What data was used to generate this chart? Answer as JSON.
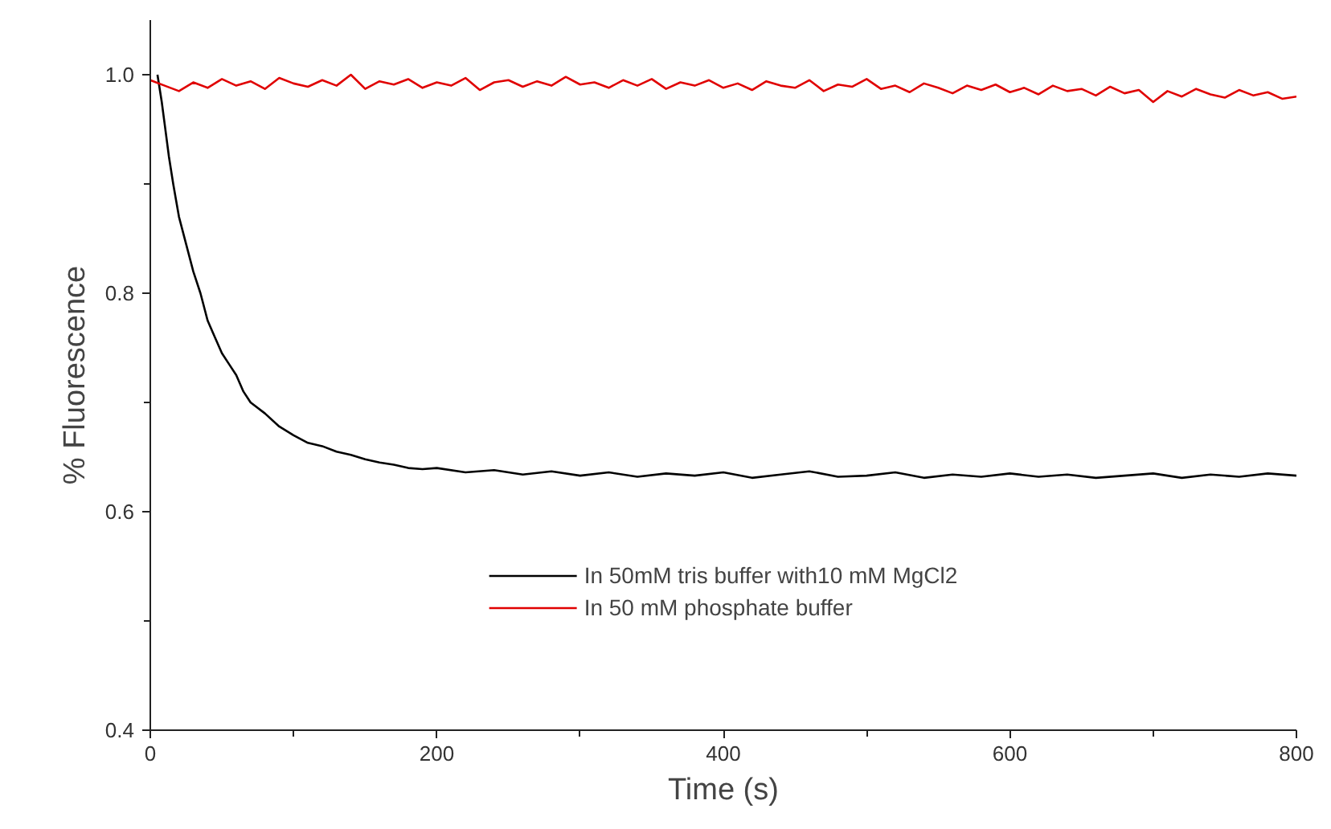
{
  "chart_data": {
    "type": "line",
    "xlabel": "Time (s)",
    "ylabel": "% Fluorescence",
    "xlim": [
      0,
      800
    ],
    "ylim": [
      0.4,
      1.05
    ],
    "xticks": [
      0,
      {
        "value": 100,
        "label": null
      },
      200,
      {
        "value": 300,
        "label": null
      },
      400,
      {
        "value": 500,
        "label": null
      },
      600,
      {
        "value": 700,
        "label": null
      },
      800
    ],
    "yticks": [
      {
        "value": 0.4,
        "label": "0.4"
      },
      {
        "value": 0.5,
        "label": null
      },
      {
        "value": 0.6,
        "label": "0.6"
      },
      {
        "value": 0.7,
        "label": null
      },
      {
        "value": 0.8,
        "label": "0.8"
      },
      {
        "value": 0.9,
        "label": null
      },
      {
        "value": 1.0,
        "label": "1.0"
      }
    ],
    "grid": false,
    "legend": "bottom",
    "line_style": "solid",
    "series": [
      {
        "name": "In 50mM tris buffer with10 mM MgCl2",
        "color": "#000000",
        "x": [
          5,
          8,
          10,
          13,
          16,
          20,
          25,
          30,
          35,
          40,
          45,
          50,
          55,
          60,
          65,
          70,
          80,
          90,
          100,
          110,
          120,
          130,
          140,
          150,
          160,
          170,
          180,
          190,
          200,
          220,
          240,
          260,
          280,
          300,
          320,
          340,
          360,
          380,
          400,
          420,
          440,
          460,
          480,
          500,
          520,
          540,
          560,
          580,
          600,
          620,
          640,
          660,
          680,
          700,
          720,
          740,
          760,
          780,
          800
        ],
        "values": [
          1.0,
          0.975,
          0.955,
          0.925,
          0.9,
          0.87,
          0.845,
          0.82,
          0.8,
          0.775,
          0.76,
          0.745,
          0.735,
          0.725,
          0.71,
          0.7,
          0.69,
          0.678,
          0.67,
          0.663,
          0.66,
          0.655,
          0.652,
          0.648,
          0.645,
          0.643,
          0.64,
          0.639,
          0.64,
          0.636,
          0.638,
          0.634,
          0.637,
          0.633,
          0.636,
          0.632,
          0.635,
          0.633,
          0.636,
          0.631,
          0.634,
          0.637,
          0.632,
          0.633,
          0.636,
          0.631,
          0.634,
          0.632,
          0.635,
          0.632,
          0.634,
          0.631,
          0.633,
          0.635,
          0.631,
          0.634,
          0.632,
          0.635,
          0.633
        ]
      },
      {
        "name": "In 50 mM phosphate buffer",
        "color": "#e00000",
        "x": [
          0,
          10,
          20,
          30,
          40,
          50,
          60,
          70,
          80,
          90,
          100,
          110,
          120,
          130,
          140,
          150,
          160,
          170,
          180,
          190,
          200,
          210,
          220,
          230,
          240,
          250,
          260,
          270,
          280,
          290,
          300,
          310,
          320,
          330,
          340,
          350,
          360,
          370,
          380,
          390,
          400,
          410,
          420,
          430,
          440,
          450,
          460,
          470,
          480,
          490,
          500,
          510,
          520,
          530,
          540,
          550,
          560,
          570,
          580,
          590,
          600,
          610,
          620,
          630,
          640,
          650,
          660,
          670,
          680,
          690,
          700,
          710,
          720,
          730,
          740,
          750,
          760,
          770,
          780,
          790,
          800
        ],
        "values": [
          0.995,
          0.99,
          0.985,
          0.993,
          0.988,
          0.996,
          0.99,
          0.994,
          0.987,
          0.997,
          0.992,
          0.989,
          0.995,
          0.99,
          1.0,
          0.987,
          0.994,
          0.991,
          0.996,
          0.988,
          0.993,
          0.99,
          0.997,
          0.986,
          0.993,
          0.995,
          0.989,
          0.994,
          0.99,
          0.998,
          0.991,
          0.993,
          0.988,
          0.995,
          0.99,
          0.996,
          0.987,
          0.993,
          0.99,
          0.995,
          0.988,
          0.992,
          0.986,
          0.994,
          0.99,
          0.988,
          0.995,
          0.985,
          0.991,
          0.989,
          0.996,
          0.987,
          0.99,
          0.984,
          0.992,
          0.988,
          0.983,
          0.99,
          0.986,
          0.991,
          0.984,
          0.988,
          0.982,
          0.99,
          0.985,
          0.987,
          0.981,
          0.989,
          0.983,
          0.986,
          0.975,
          0.985,
          0.98,
          0.987,
          0.982,
          0.979,
          0.986,
          0.981,
          0.984,
          0.978,
          0.98
        ]
      }
    ]
  }
}
